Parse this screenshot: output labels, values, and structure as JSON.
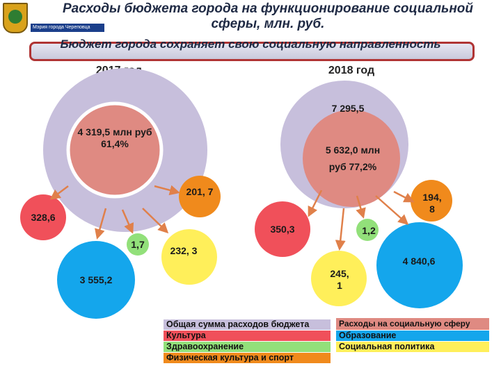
{
  "header": {
    "title": "Расходы бюджета города на функционирование социальной сферы, млн. руб.",
    "subtitle": "Бюджет города сохраняет свою социальную направленность",
    "logo_caption": "Мэрия города Череповца"
  },
  "years": {
    "left": "2017 год",
    "right": "2018 год"
  },
  "y2017": {
    "total": "",
    "social": "4 319,5 млн руб 61,4%",
    "culture": "328,6",
    "education": "3 555,2",
    "health": "1,7",
    "social_policy": "232, 3",
    "sport": "201, 7"
  },
  "y2018": {
    "total": "7 295,5",
    "social": "5 632,0 млн руб 77,2%",
    "culture": "350,3",
    "education": "4 840,6",
    "health": "1,2",
    "social_policy": "194, 8",
    "sport": "245, 1"
  },
  "legend": {
    "total": "Общая сумма расходов бюджета",
    "social": "Расходы на социальную сферу",
    "culture": "Культура",
    "education": "Образование",
    "health": "Здравоохранение",
    "social_policy": "Социальная политика",
    "sport": "Физическая культура и спорт"
  },
  "colors": {
    "total": "#c7bfdc",
    "social": "#df8a82",
    "culture": "#f0505a",
    "education": "#14a6ec",
    "health": "#92e07a",
    "social_policy": "#ffef5a",
    "sport": "#f08a1c",
    "arrow": "#e0804a"
  }
}
